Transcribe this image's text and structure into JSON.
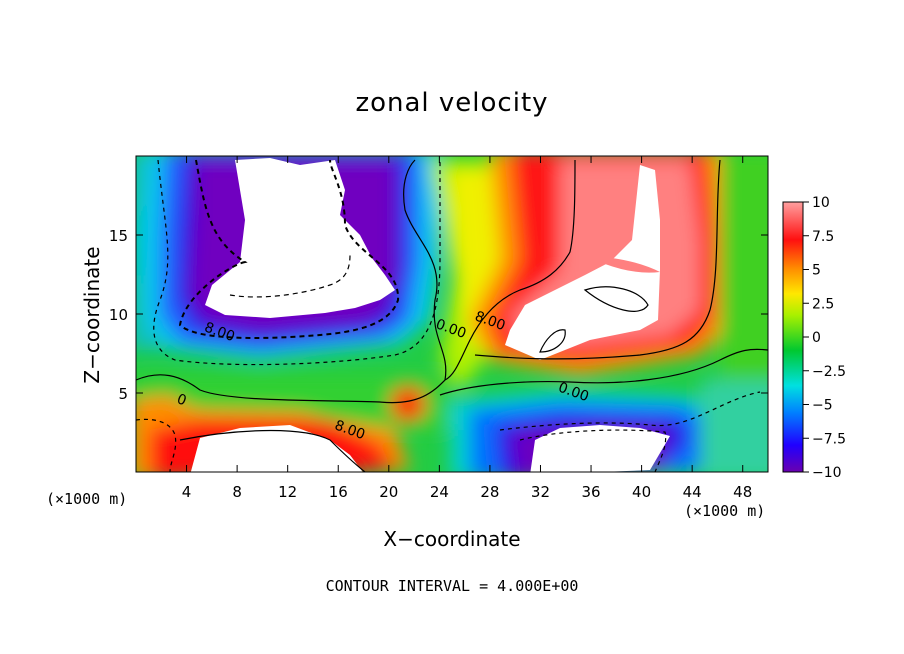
{
  "chart_data": {
    "type": "heatmap",
    "title": "zonal velocity",
    "xlabel": "X−coordinate",
    "ylabel": "Z−coordinate",
    "x_units_left": "(×1000 m)",
    "x_units_right": "(×1000 m)",
    "footer": "CONTOUR INTERVAL = 4.000E+00",
    "xlim": [
      0,
      50
    ],
    "ylim": [
      0,
      20
    ],
    "x_ticks": [
      "4",
      "8",
      "12",
      "16",
      "20",
      "24",
      "28",
      "32",
      "36",
      "40",
      "44",
      "48"
    ],
    "x_tick_values": [
      4,
      8,
      12,
      16,
      20,
      24,
      28,
      32,
      36,
      40,
      44,
      48
    ],
    "y_ticks": [
      "5",
      "10",
      "15"
    ],
    "y_tick_values": [
      5,
      10,
      15
    ],
    "colorbar": {
      "ticks": [
        "10",
        "7.5",
        "5",
        "2.5",
        "0",
        "−2.5",
        "−5",
        "−7.5",
        "−10"
      ],
      "tick_values": [
        10,
        7.5,
        5,
        2.5,
        0,
        -2.5,
        -5,
        -7.5,
        -10
      ],
      "range": [
        -10,
        10
      ]
    },
    "contour_labels": [
      {
        "text": "8.00",
        "x": 6.5,
        "y": 8.6
      },
      {
        "text": "0.00",
        "x": 24.8,
        "y": 8.8
      },
      {
        "text": "8.00",
        "x": 27.9,
        "y": 9.3
      },
      {
        "text": "0.00",
        "x": 34.5,
        "y": 4.8
      },
      {
        "text": "8.00",
        "x": 16.8,
        "y": 2.4
      },
      {
        "text": "0",
        "x": 3.5,
        "y": 4.3
      }
    ],
    "grid": false,
    "colors": {
      "purple": "#7a00c8",
      "blue": "#0033ff",
      "cyan": "#00c8ff",
      "green": "#10d040",
      "yellow": "#e8ff00",
      "orange": "#ffa000",
      "red": "#ff1010",
      "pink": "#ff9090"
    }
  }
}
